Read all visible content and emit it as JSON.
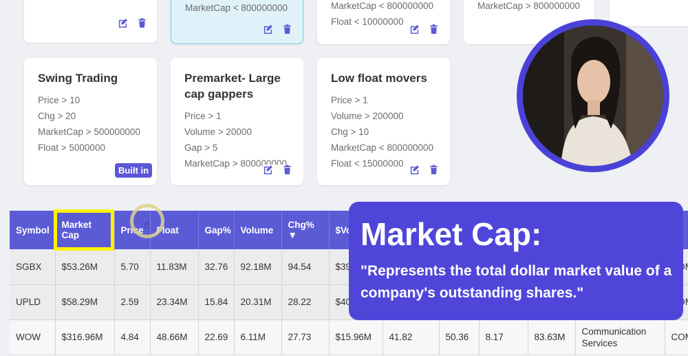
{
  "top_cards": [
    {
      "lines": []
    },
    {
      "lines": [
        "MarketCap < 800000000"
      ]
    },
    {
      "lines": [
        "MarketCap < 800000000",
        "Float < 10000000"
      ]
    },
    {
      "lines": [
        "MarketCap > 800000000"
      ]
    }
  ],
  "strategies": [
    {
      "title": "Swing Trading",
      "lines": [
        "Price > 10",
        "Chg > 20",
        "MarketCap > 500000000",
        "Float > 5000000"
      ],
      "badge": "Built in"
    },
    {
      "title": "Premarket- Large cap gappers",
      "lines": [
        "Price > 1",
        "Volume > 20000",
        "Gap > 5",
        "MarketCap > 800000000"
      ]
    },
    {
      "title": "Low float movers",
      "lines": [
        "Price > 1",
        "Volume > 200000",
        "Chg > 10",
        "MarketCap < 800000000",
        "Float < 15000000"
      ]
    }
  ],
  "table": {
    "columns": [
      "Symbol",
      "Market Cap",
      "Price",
      "Float",
      "Gap%",
      "Volume",
      "Chg% ▼",
      "$Vo",
      "",
      "",
      "",
      "",
      "",
      "e"
    ],
    "rows": [
      [
        "SGBX",
        "$53.26M",
        "5.70",
        "11.83M",
        "32.76",
        "92.18M",
        "94.54",
        "$39",
        "",
        "",
        "",
        "",
        "",
        "COM"
      ],
      [
        "UPLD",
        "$58.29M",
        "2.59",
        "23.34M",
        "15.84",
        "20.31M",
        "28.22",
        "$40",
        "",
        "",
        "",
        "",
        "",
        "COM"
      ],
      [
        "WOW",
        "$316.96M",
        "4.84",
        "48.66M",
        "22.69",
        "6.11M",
        "27.73",
        "$15.96M",
        "41.82",
        "50.36",
        "8.17",
        "83.63M",
        "Communication Services",
        "COMMON STOCK"
      ]
    ]
  },
  "callout": {
    "title": "Market Cap:",
    "quote": "\"Represents the total dollar market value of a company's outstanding shares.\""
  },
  "colors": {
    "accent": "#5b5bd6",
    "highlight": "#fff200",
    "callout": "#4f46d9"
  }
}
